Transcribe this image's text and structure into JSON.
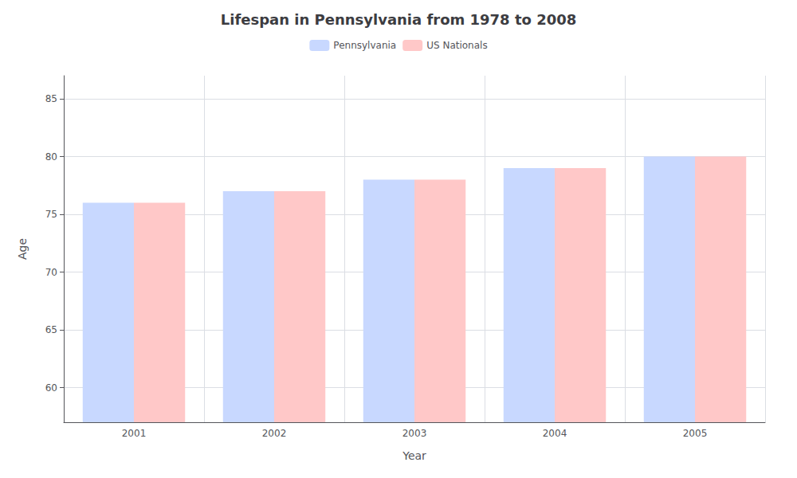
{
  "chart_data": {
    "type": "bar",
    "title": "Lifespan in Pennsylvania from 1978 to 2008",
    "x_label": "Year",
    "y_label": "Age",
    "categories": [
      "2001",
      "2002",
      "2003",
      "2004",
      "2005"
    ],
    "series": [
      {
        "name": "Pennsylvania",
        "color": "#c8d8ff",
        "values": [
          76,
          77,
          78,
          79,
          80
        ]
      },
      {
        "name": "US Nationals",
        "color": "#ffc8c8",
        "values": [
          76,
          77,
          78,
          79,
          80
        ]
      }
    ],
    "ylim": [
      57,
      87
    ],
    "yticks": [
      60,
      65,
      70,
      75,
      80,
      85
    ],
    "grid": true,
    "legend": "top"
  }
}
